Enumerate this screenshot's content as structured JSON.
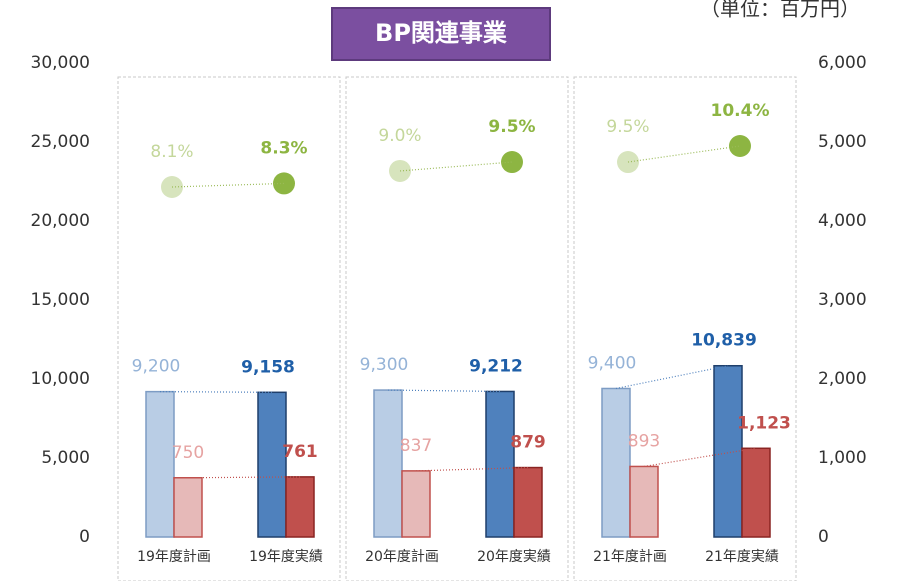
{
  "chart_data": {
    "type": "bar",
    "title": "BP関連事業",
    "subtitle": "（単位：百万円）",
    "categories": [
      "19年度計画",
      "19年度実績",
      "20年度計画",
      "20年度実績",
      "21年度計画",
      "21年度実績"
    ],
    "series": [
      {
        "axis": "y",
        "colors": [
          "#b9cde5",
          "#4f81bd",
          "#b9cde5",
          "#4f81bd",
          "#b9cde5",
          "#4f81bd"
        ],
        "values": [
          9200,
          9158,
          9300,
          9212,
          9400,
          10839
        ],
        "value_labels": [
          "9,200",
          "9,158",
          "9,300",
          "9,212",
          "9,400",
          "10,839"
        ]
      },
      {
        "axis": "y2",
        "colors": [
          "#e6b9b8",
          "#c0504d",
          "#e6b9b8",
          "#c0504d",
          "#e6b9b8",
          "#c0504d"
        ],
        "values": [
          750,
          761,
          837,
          879,
          893,
          1123
        ],
        "value_labels": [
          "750",
          "761",
          "837",
          "879",
          "893",
          "1,123"
        ]
      },
      {
        "colors": [
          "#d7e4bd",
          "#8db542",
          "#d7e4bd",
          "#8db542",
          "#d7e4bd",
          "#8db542"
        ],
        "values": [
          8.1,
          8.3,
          9.0,
          9.5,
          9.5,
          10.4
        ],
        "value_labels": [
          "8.1%",
          "8.3%",
          "9.0%",
          "9.5%",
          "9.5%",
          "10.4%"
        ]
      }
    ],
    "ylim": [
      0,
      30000
    ],
    "yticks": [
      0,
      {
        "value": 5000,
        "label": "5,000"
      },
      {
        "value": 10000,
        "label": "10,000"
      },
      {
        "value": 15000,
        "label": "15,000"
      },
      {
        "value": 20000,
        "label": "20,000"
      },
      {
        "value": 25000,
        "label": "25,000"
      },
      {
        "value": 30000,
        "label": "30,000"
      }
    ],
    "y2lim": [
      0,
      6000
    ],
    "y2ticks": [
      0,
      {
        "value": 1000,
        "label": "1,000"
      },
      {
        "value": 2000,
        "label": "2,000"
      },
      {
        "value": 3000,
        "label": "3,000"
      },
      {
        "value": 4000,
        "label": "4,000"
      },
      {
        "value": 5000,
        "label": "5,000"
      },
      {
        "value": 6000,
        "label": "6,000"
      }
    ]
  }
}
